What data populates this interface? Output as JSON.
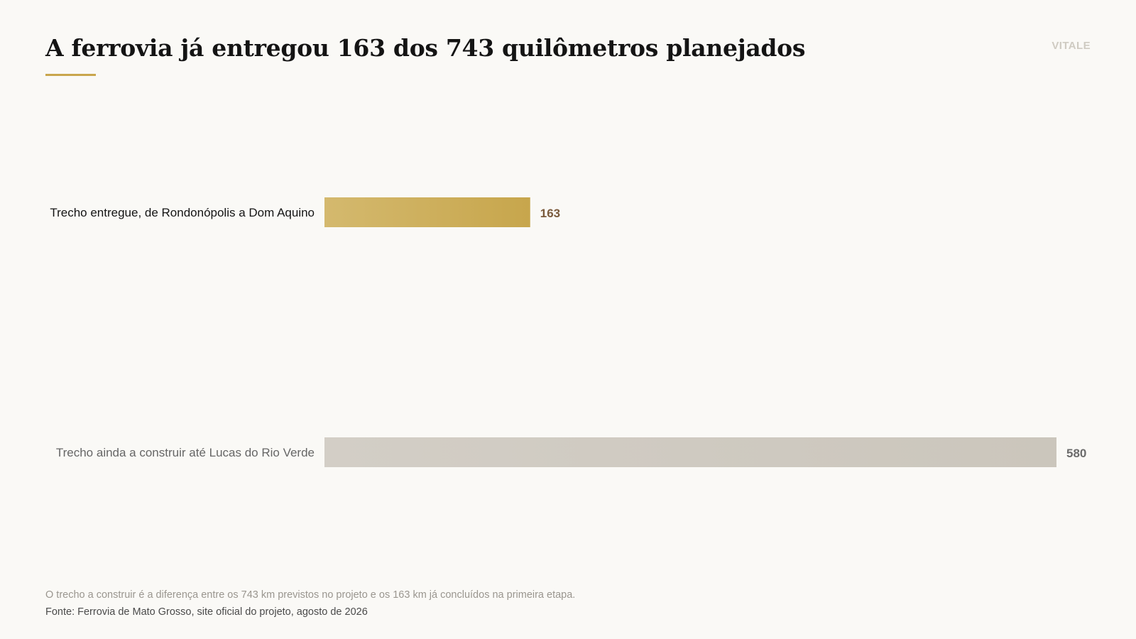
{
  "header": {
    "title": "A ferrovia já entregou 163 dos 743 quilômetros planejados",
    "brand": "VITALE"
  },
  "colors": {
    "accent": "#c9a64d",
    "delivered_bar": "#c9a64d",
    "remaining_bar": "#cfcac2",
    "delivered_value": "#7a5a3c",
    "remaining_value": "#6b6b6b",
    "delivered_label": "#141414",
    "remaining_label": "#666666"
  },
  "chart_data": {
    "type": "bar",
    "orientation": "horizontal",
    "title": "A ferrovia já entregou 163 dos 743 quilômetros planejados",
    "categories": [
      "Trecho entregue, de Rondonópolis a Dom Aquino",
      "Trecho ainda a construir até Lucas do Rio Verde"
    ],
    "values": [
      163,
      580
    ],
    "value_labels": [
      "163",
      "580"
    ],
    "xlim": [
      0,
      580
    ],
    "grid": false,
    "legend": "none"
  },
  "footer": {
    "note": "O trecho a construir é a diferença entre os 743 km previstos no projeto e os 163 km já concluídos na primeira etapa.",
    "source": "Fonte: Ferrovia de Mato Grosso, site oficial do projeto, agosto de 2026"
  }
}
